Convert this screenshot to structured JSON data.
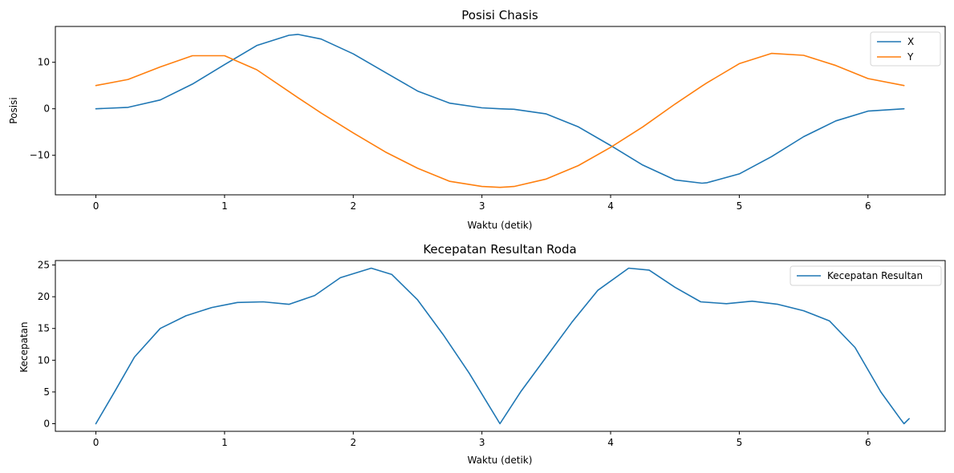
{
  "chart_data": [
    {
      "type": "line",
      "title": "Posisi Chasis",
      "xlabel": "Waktu (detik)",
      "ylabel": "Posisi",
      "xlim": [
        -0.315,
        6.6
      ],
      "ylim": [
        -18.5,
        17.7
      ],
      "xticks": [
        0,
        1,
        2,
        3,
        4,
        5,
        6
      ],
      "yticks": [
        -10,
        0,
        10
      ],
      "ytick_labels": [
        "−10",
        "0",
        "10"
      ],
      "legend": "top-right",
      "grid": false,
      "x": [
        0,
        0.25,
        0.5,
        0.75,
        1.0,
        1.25,
        1.5,
        1.57,
        1.75,
        2.0,
        2.25,
        2.5,
        2.75,
        3.0,
        3.14,
        3.25,
        3.5,
        3.75,
        4.0,
        4.25,
        4.5,
        4.71,
        4.75,
        5.0,
        5.25,
        5.5,
        5.75,
        6.0,
        6.28
      ],
      "series": [
        {
          "name": "X",
          "color": "#1f77b4",
          "values": [
            0,
            0.3,
            1.9,
            5.3,
            9.5,
            13.6,
            15.8,
            16.0,
            15.0,
            11.8,
            7.8,
            3.8,
            1.2,
            0.2,
            0,
            -0.1,
            -1.1,
            -3.9,
            -7.9,
            -12.1,
            -15.3,
            -16.0,
            -15.9,
            -14.0,
            -10.3,
            -6.0,
            -2.6,
            -0.5,
            0
          ]
        },
        {
          "name": "Y",
          "color": "#ff7f0e",
          "values": [
            5.0,
            6.3,
            9.0,
            11.4,
            11.4,
            8.4,
            3.7,
            2.4,
            -0.9,
            -5.2,
            -9.3,
            -12.8,
            -15.6,
            -16.7,
            -16.9,
            -16.7,
            -15.1,
            -12.2,
            -8.3,
            -3.9,
            1.0,
            4.9,
            5.6,
            9.7,
            11.9,
            11.5,
            9.3,
            6.5,
            5.0
          ]
        }
      ]
    },
    {
      "type": "line",
      "title": "Kecepatan Resultan Roda",
      "xlabel": "Waktu (detik)",
      "ylabel": "Kecepatan",
      "xlim": [
        -0.315,
        6.6
      ],
      "ylim": [
        -1.2,
        25.7
      ],
      "xticks": [
        0,
        1,
        2,
        3,
        4,
        5,
        6
      ],
      "yticks": [
        0,
        5,
        10,
        15,
        20,
        25
      ],
      "ytick_labels": [
        "0",
        "5",
        "10",
        "15",
        "20",
        "25"
      ],
      "legend": "top-right",
      "grid": false,
      "x": [
        0,
        0.15,
        0.3,
        0.5,
        0.7,
        0.9,
        1.1,
        1.3,
        1.5,
        1.7,
        1.9,
        2.14,
        2.3,
        2.5,
        2.7,
        2.9,
        3.14,
        3.3,
        3.5,
        3.7,
        3.9,
        4.14,
        4.3,
        4.5,
        4.7,
        4.9,
        5.1,
        5.3,
        5.5,
        5.7,
        5.9,
        6.1,
        6.25,
        6.28,
        6.32
      ],
      "series": [
        {
          "name": "Kecepatan Resultan",
          "color": "#1f77b4",
          "values": [
            0,
            5.2,
            10.5,
            15.0,
            17.0,
            18.3,
            19.1,
            19.2,
            18.8,
            20.2,
            23.0,
            24.5,
            23.5,
            19.5,
            14.0,
            8.0,
            0,
            5.0,
            10.5,
            16.0,
            21.0,
            24.5,
            24.2,
            21.5,
            19.2,
            18.9,
            19.3,
            18.8,
            17.8,
            16.2,
            12.0,
            5.0,
            0.8,
            0,
            0.8
          ]
        }
      ]
    }
  ]
}
